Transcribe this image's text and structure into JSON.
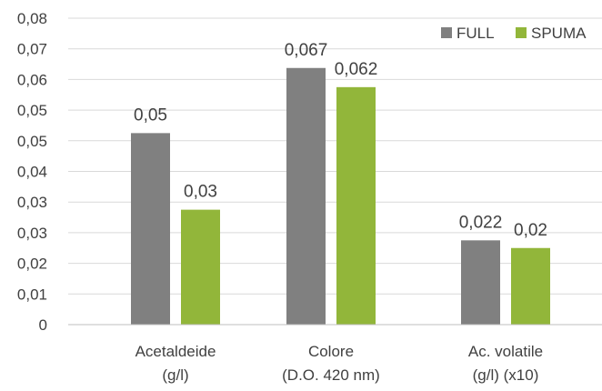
{
  "chart_data": {
    "type": "bar",
    "categories": [
      [
        "Acetaldeide",
        "(g/l)"
      ],
      [
        "Colore",
        "(D.O. 420 nm)"
      ],
      [
        "Ac. volatile",
        "(g/l) (x10)"
      ]
    ],
    "series": [
      {
        "name": "FULL",
        "color": "#808080",
        "values": [
          0.05,
          0.067,
          0.022
        ],
        "labels": [
          "0,05",
          "0,067",
          "0,022"
        ]
      },
      {
        "name": "SPUMA",
        "color": "#92B63A",
        "values": [
          0.03,
          0.062,
          0.02
        ],
        "labels": [
          "0,03",
          "0,062",
          "0,02"
        ]
      }
    ],
    "yticks": [
      "0",
      "0,01",
      "0,02",
      "0,03",
      "0,03",
      "0,04",
      "0,05",
      "0,05",
      "0,06",
      "0,07",
      "0,08"
    ],
    "ylim": [
      0,
      0.08
    ],
    "title": "",
    "xlabel": "",
    "ylabel": "",
    "grid": true,
    "gridColor": "#d9d9d9",
    "legend": "top-right"
  }
}
